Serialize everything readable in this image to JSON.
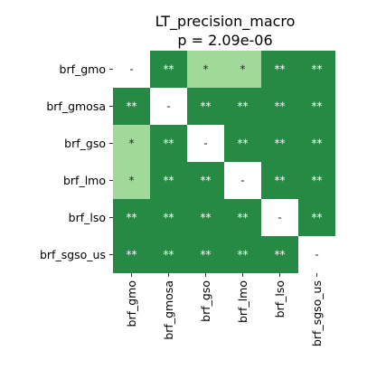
{
  "chart_data": {
    "type": "heatmap",
    "title": "LT_precision_macro",
    "subtitle": "p = 2.09e-06",
    "row_labels": [
      "brf_gmo",
      "brf_gmosa",
      "brf_gso",
      "brf_lmo",
      "brf_lso",
      "brf_sgso_us"
    ],
    "col_labels": [
      "brf_gmo",
      "brf_gmosa",
      "brf_gso",
      "brf_lmo",
      "brf_lso",
      "brf_sgso_us"
    ],
    "cells": [
      [
        "-",
        "**",
        "*",
        "*",
        "**",
        "**"
      ],
      [
        "**",
        "-",
        "**",
        "**",
        "**",
        "**"
      ],
      [
        "*",
        "**",
        "-",
        "**",
        "**",
        "**"
      ],
      [
        "*",
        "**",
        "**",
        "-",
        "**",
        "**"
      ],
      [
        "**",
        "**",
        "**",
        "**",
        "-",
        "**"
      ],
      [
        "**",
        "**",
        "**",
        "**",
        "**",
        "-"
      ]
    ],
    "colors": {
      "**": "#268a45",
      "*": "#a1d99b",
      "-": "#ffffff"
    },
    "label_colors": {
      "**": "#ffffff",
      "*": "#262626",
      "-": "#262626"
    }
  }
}
